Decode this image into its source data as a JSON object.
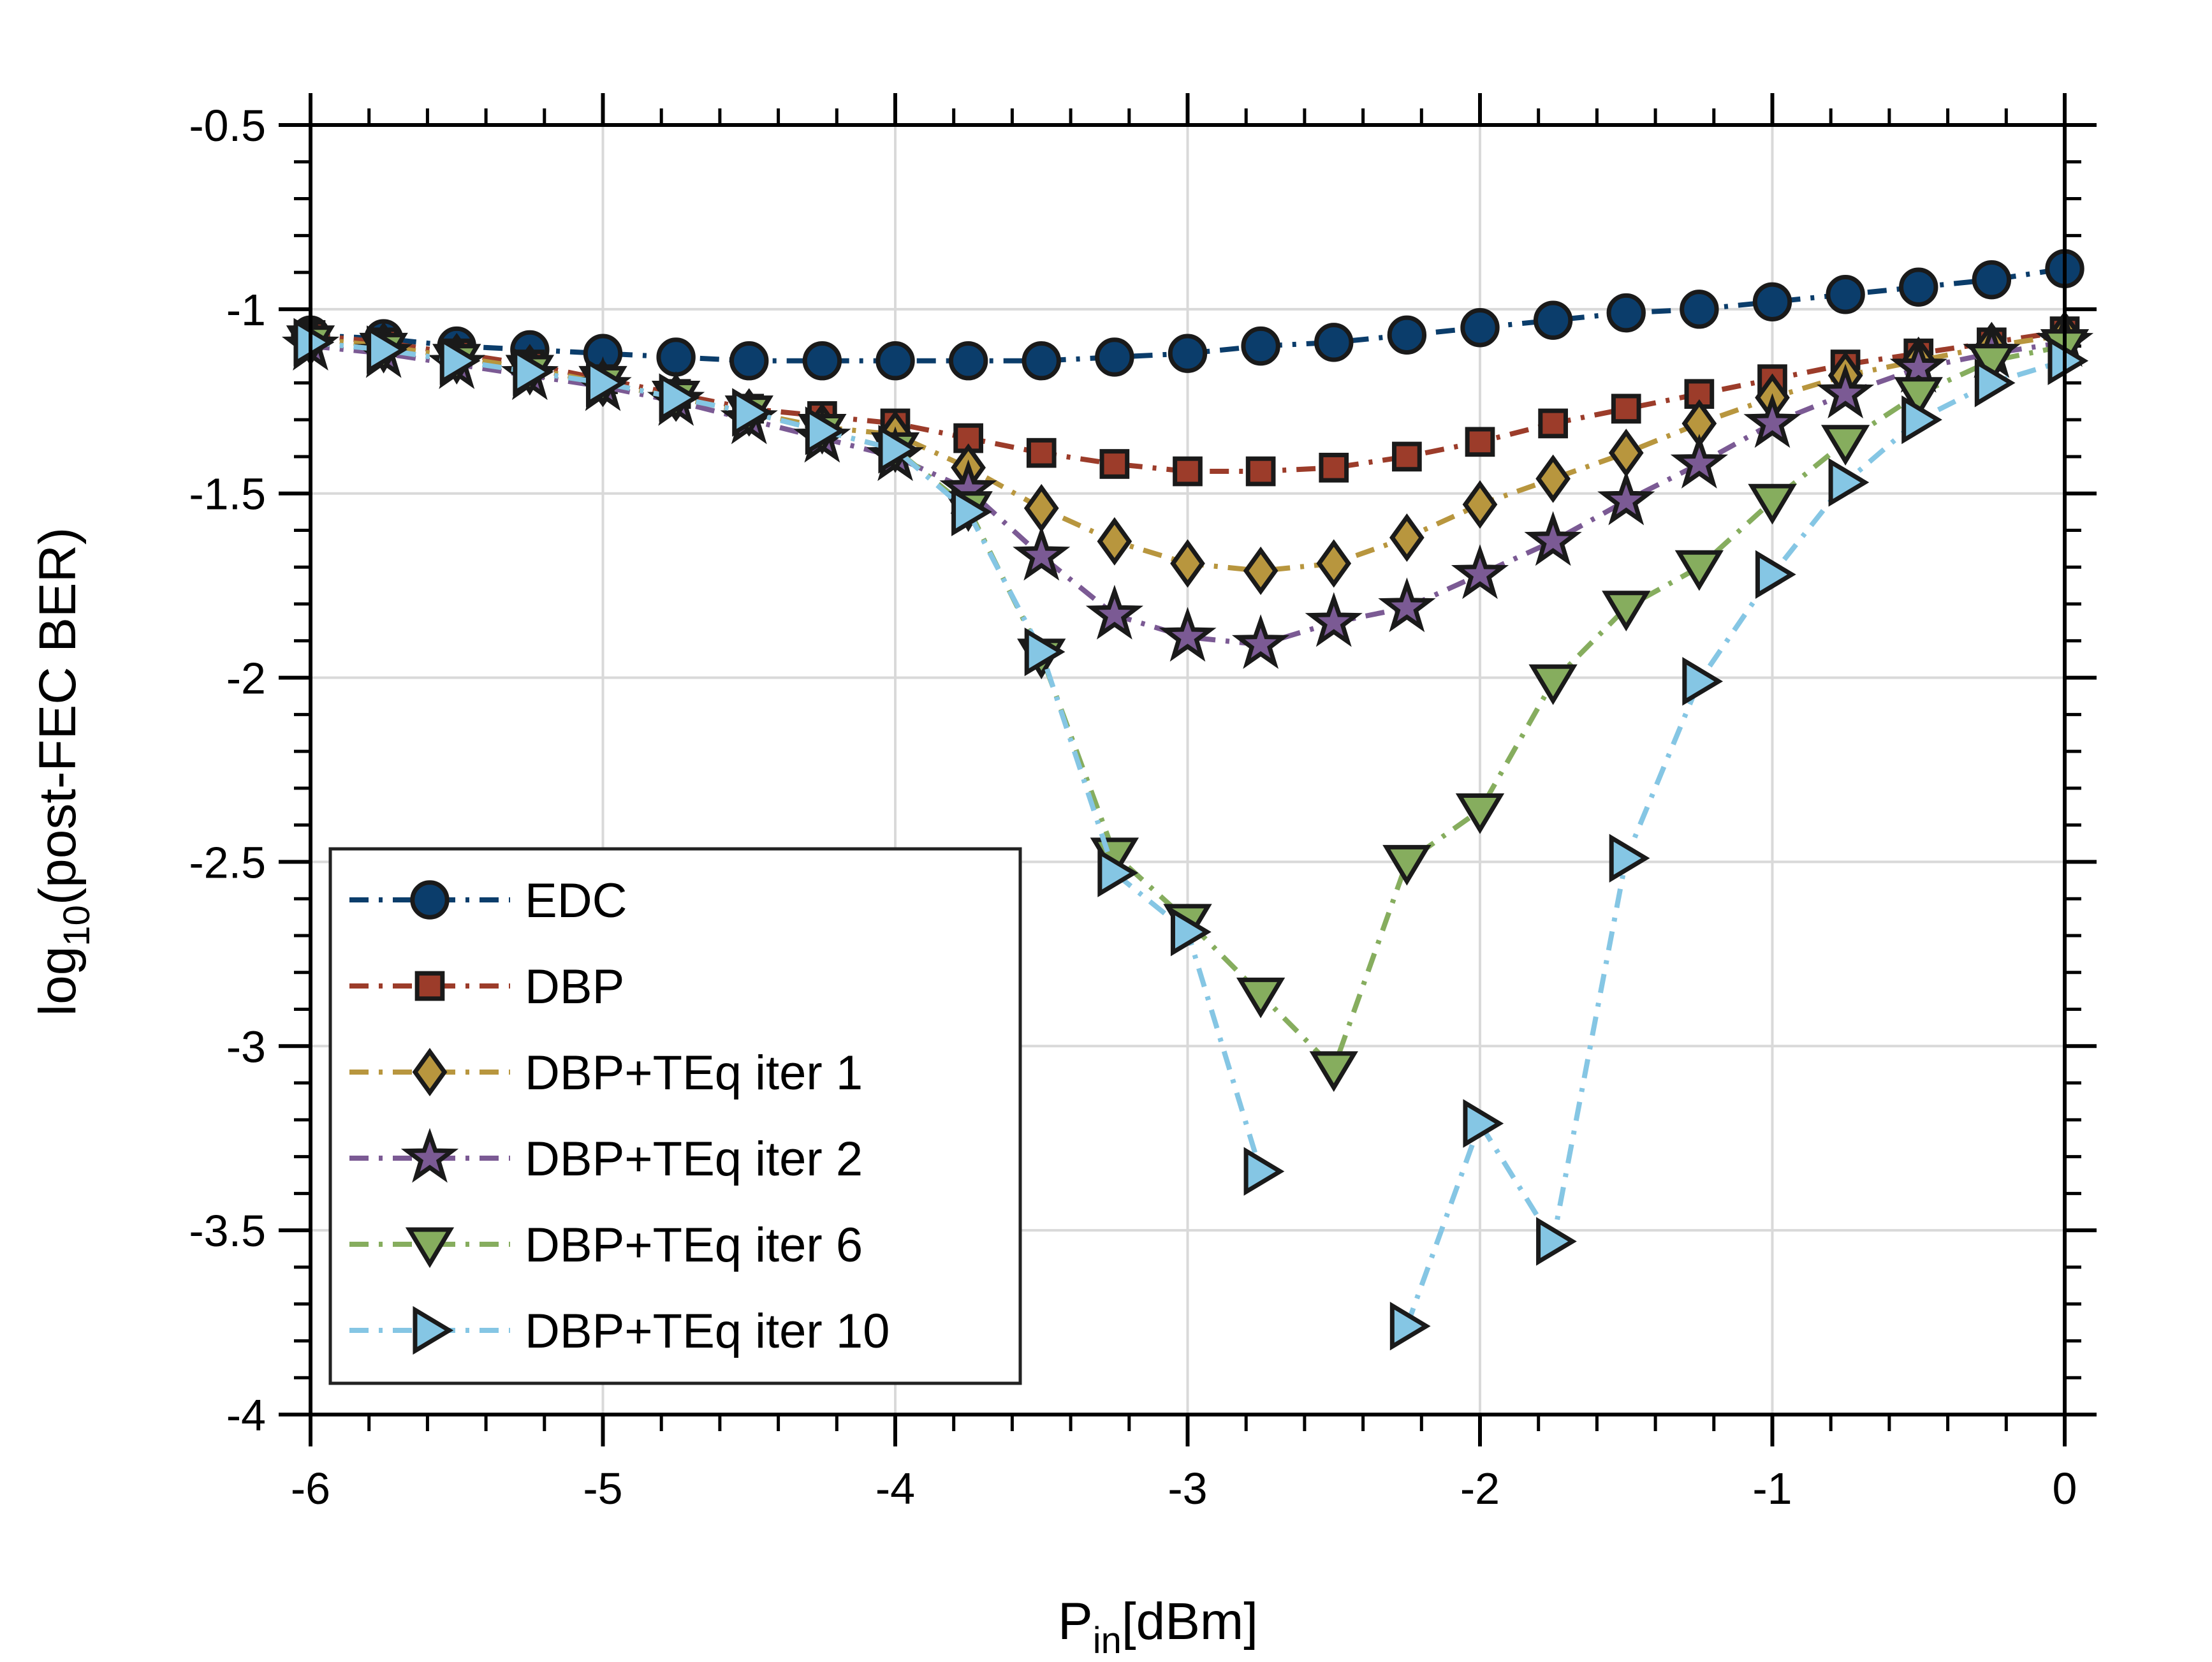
{
  "chart_data": {
    "type": "line",
    "xlabel": {
      "main": "P",
      "sub": "in",
      "rest": "[dBm]"
    },
    "ylabel": {
      "pre": "log",
      "sub": "10",
      "rest": "(post-FEC BER)"
    },
    "xlim": [
      -6,
      0
    ],
    "ylim": [
      -4,
      -0.5
    ],
    "xticks": [
      -6,
      -5,
      -4,
      -3,
      -2,
      -1,
      0
    ],
    "xtick_labels": [
      "-6",
      "-5",
      "-4",
      "-3",
      "-2",
      "-1",
      "0"
    ],
    "yticks": [
      -4,
      -3.5,
      -3,
      -2.5,
      -2,
      -1.5,
      -1,
      -0.5
    ],
    "ytick_labels": [
      "-4",
      "-3.5",
      "-3",
      "-2.5",
      "-2",
      "-1.5",
      "-1",
      "-0.5"
    ],
    "grid": true,
    "legend_position": "bottom-left",
    "x": [
      -6,
      -5.75,
      -5.5,
      -5.25,
      -5,
      -4.75,
      -4.5,
      -4.25,
      -4,
      -3.75,
      -3.5,
      -3.25,
      -3,
      -2.75,
      -2.5,
      -2.25,
      -2,
      -1.75,
      -1.5,
      -1.25,
      -1,
      -0.75,
      -0.5,
      -0.25,
      0
    ],
    "series": [
      {
        "name": "EDC",
        "color": "#0b3d6b",
        "marker": "circle",
        "dash": "dashdot",
        "values": [
          -1.07,
          -1.08,
          -1.1,
          -1.11,
          -1.12,
          -1.13,
          -1.14,
          -1.14,
          -1.14,
          -1.14,
          -1.14,
          -1.13,
          -1.12,
          -1.1,
          -1.09,
          -1.07,
          -1.05,
          -1.03,
          -1.01,
          -1.0,
          -0.98,
          -0.96,
          -0.94,
          -0.92,
          -0.89
        ]
      },
      {
        "name": "DBP",
        "color": "#9c3c2a",
        "marker": "square",
        "dash": "dashdot",
        "values": [
          -1.07,
          -1.09,
          -1.12,
          -1.15,
          -1.19,
          -1.23,
          -1.27,
          -1.29,
          -1.31,
          -1.35,
          -1.39,
          -1.42,
          -1.44,
          -1.44,
          -1.43,
          -1.4,
          -1.36,
          -1.31,
          -1.27,
          -1.23,
          -1.19,
          -1.15,
          -1.12,
          -1.09,
          -1.06
        ]
      },
      {
        "name": "DBP+TEq iter 1",
        "color": "#b8963e",
        "marker": "diamond",
        "dash": "dashdot",
        "values": [
          -1.08,
          -1.1,
          -1.13,
          -1.16,
          -1.2,
          -1.24,
          -1.28,
          -1.32,
          -1.34,
          -1.43,
          -1.54,
          -1.63,
          -1.69,
          -1.71,
          -1.69,
          -1.62,
          -1.53,
          -1.46,
          -1.39,
          -1.31,
          -1.24,
          -1.18,
          -1.14,
          -1.1,
          -1.07
        ]
      },
      {
        "name": "DBP+TEq iter 2",
        "color": "#7b5a94",
        "marker": "star",
        "dash": "dashdot",
        "values": [
          -1.1,
          -1.12,
          -1.15,
          -1.18,
          -1.21,
          -1.25,
          -1.3,
          -1.35,
          -1.4,
          -1.49,
          -1.67,
          -1.83,
          -1.89,
          -1.91,
          -1.85,
          -1.81,
          -1.72,
          -1.63,
          -1.52,
          -1.42,
          -1.31,
          -1.23,
          -1.16,
          -1.12,
          -1.09
        ]
      },
      {
        "name": "DBP+TEq iter 6",
        "color": "#86ad5e",
        "marker": "triangle-down",
        "dash": "dashdot",
        "values": [
          -1.09,
          -1.11,
          -1.14,
          -1.17,
          -1.2,
          -1.24,
          -1.28,
          -1.33,
          -1.38,
          -1.54,
          -1.94,
          -2.48,
          -2.66,
          -2.86,
          -3.06,
          -2.5,
          -2.36,
          -2.01,
          -1.81,
          -1.7,
          -1.52,
          -1.36,
          -1.23,
          -1.14,
          -1.1
        ]
      },
      {
        "name": "DBP+TEq iter 10",
        "color": "#85c6e4",
        "marker": "triangle-right",
        "dash": "dashdot",
        "values": [
          -1.09,
          -1.11,
          -1.14,
          -1.17,
          -1.2,
          -1.24,
          -1.28,
          -1.33,
          -1.38,
          -1.55,
          -1.93,
          -2.53,
          -2.69,
          -3.34,
          null,
          -3.76,
          -3.21,
          -3.53,
          -2.49,
          -2.01,
          -1.72,
          -1.47,
          -1.3,
          -1.2,
          -1.14
        ]
      }
    ]
  }
}
